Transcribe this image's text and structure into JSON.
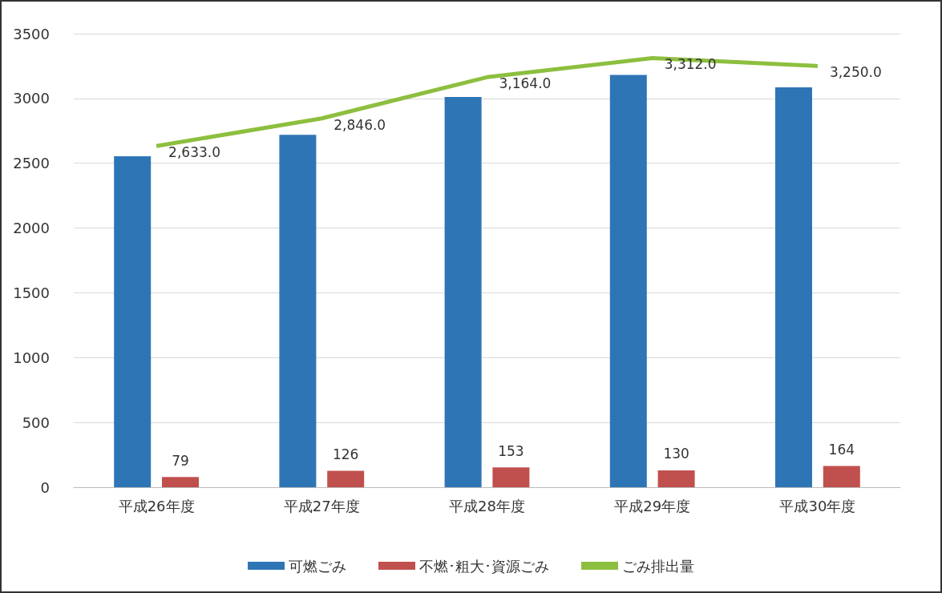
{
  "chart_data": {
    "type": "bar",
    "categories": [
      "平成26年度",
      "平成27年度",
      "平成28年度",
      "平成29年度",
      "平成30年度"
    ],
    "series": [
      {
        "name": "可燃ごみ",
        "color": "#2e75b6",
        "values": [
          2554,
          2720,
          3011,
          3182,
          3086
        ]
      },
      {
        "name": "不燃･粗大･資源ごみ",
        "color": "#c0504d",
        "values": [
          79,
          126,
          153,
          130,
          164
        ],
        "value_labels": [
          "79",
          "126",
          "153",
          "130",
          "164"
        ]
      },
      {
        "name": "ごみ排出量",
        "type": "line",
        "color": "#8cbf3f",
        "values": [
          2633,
          2846,
          3164,
          3312,
          3250
        ],
        "value_labels": [
          "2,633.0",
          "2,846.0",
          "3,164.0",
          "3,312.0",
          "3,250.0"
        ]
      }
    ],
    "ylim": [
      0,
      3500
    ],
    "yticks": [
      0,
      500,
      1000,
      1500,
      2000,
      2500,
      3000,
      3500
    ],
    "grid": "y",
    "legend": "bottom",
    "marker": "none"
  }
}
